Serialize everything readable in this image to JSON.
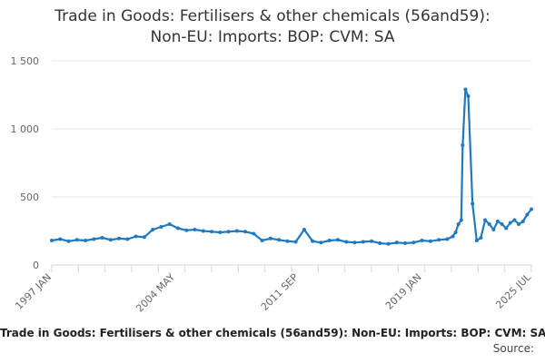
{
  "chart_data": {
    "type": "line",
    "title": "Trade in Goods: Fertilisers & other chemicals (56and59): Non-EU: Imports: BOP: CVM: SA",
    "title_lines": [
      "Trade in Goods: Fertilisers & other chemicals (56and59):",
      "Non-EU: Imports: BOP: CVM: SA"
    ],
    "xlabel": "",
    "ylabel": "",
    "ylim": [
      0,
      1500
    ],
    "yticks": [
      0,
      500,
      1000,
      1500
    ],
    "ytick_labels": [
      "0",
      "500",
      "1 000",
      "1 500"
    ],
    "xlim": [
      "1997-01",
      "2025-07"
    ],
    "xtick_labels": [
      "1997 JAN",
      "2004 MAY",
      "2011 SEP",
      "2019 JAN",
      "2025 JUL"
    ],
    "xtick_values": [
      "1997-01",
      "2004-05",
      "2011-09",
      "2019-01",
      "2025-07"
    ],
    "grid": "horizontal",
    "legend": "none",
    "line_color": "#1f7ac1",
    "series": [
      {
        "x": [
          "1997-01",
          "1997-07",
          "1998-01",
          "1998-07",
          "1999-01",
          "1999-07",
          "2000-01",
          "2000-07",
          "2001-01",
          "2001-07",
          "2002-01",
          "2002-07",
          "2003-01",
          "2003-07",
          "2004-01",
          "2004-07",
          "2005-01",
          "2005-07",
          "2006-01",
          "2006-07",
          "2007-01",
          "2007-07",
          "2008-01",
          "2008-07",
          "2009-01",
          "2009-07",
          "2010-01",
          "2010-07",
          "2011-01",
          "2011-07",
          "2012-01",
          "2012-07",
          "2013-01",
          "2013-07",
          "2014-01",
          "2014-07",
          "2015-01",
          "2015-07",
          "2016-01",
          "2016-07",
          "2017-01",
          "2017-07",
          "2018-01",
          "2018-07",
          "2019-01",
          "2019-07",
          "2020-01",
          "2020-07",
          "2020-11",
          "2021-01",
          "2021-03",
          "2021-05",
          "2021-06",
          "2021-08",
          "2021-10",
          "2022-01",
          "2022-04",
          "2022-07",
          "2022-10",
          "2023-01",
          "2023-04",
          "2023-07",
          "2023-10",
          "2024-01",
          "2024-04",
          "2024-07",
          "2024-10",
          "2025-01",
          "2025-04",
          "2025-07"
        ],
        "values": [
          180,
          190,
          175,
          185,
          180,
          190,
          200,
          185,
          195,
          190,
          210,
          205,
          260,
          280,
          300,
          270,
          255,
          260,
          250,
          245,
          240,
          245,
          250,
          245,
          230,
          180,
          195,
          185,
          175,
          170,
          260,
          175,
          165,
          180,
          185,
          170,
          165,
          170,
          175,
          160,
          155,
          165,
          160,
          165,
          180,
          175,
          185,
          190,
          210,
          240,
          300,
          330,
          880,
          1290,
          1240,
          450,
          180,
          200,
          330,
          300,
          260,
          320,
          300,
          270,
          310,
          330,
          300,
          320,
          370,
          410
        ]
      }
    ]
  },
  "footer": {
    "title": "Trade in Goods: Fertilisers & other chemicals (56and59): Non-EU: Imports: BOP: CVM: SA",
    "source_label": "Source:"
  }
}
